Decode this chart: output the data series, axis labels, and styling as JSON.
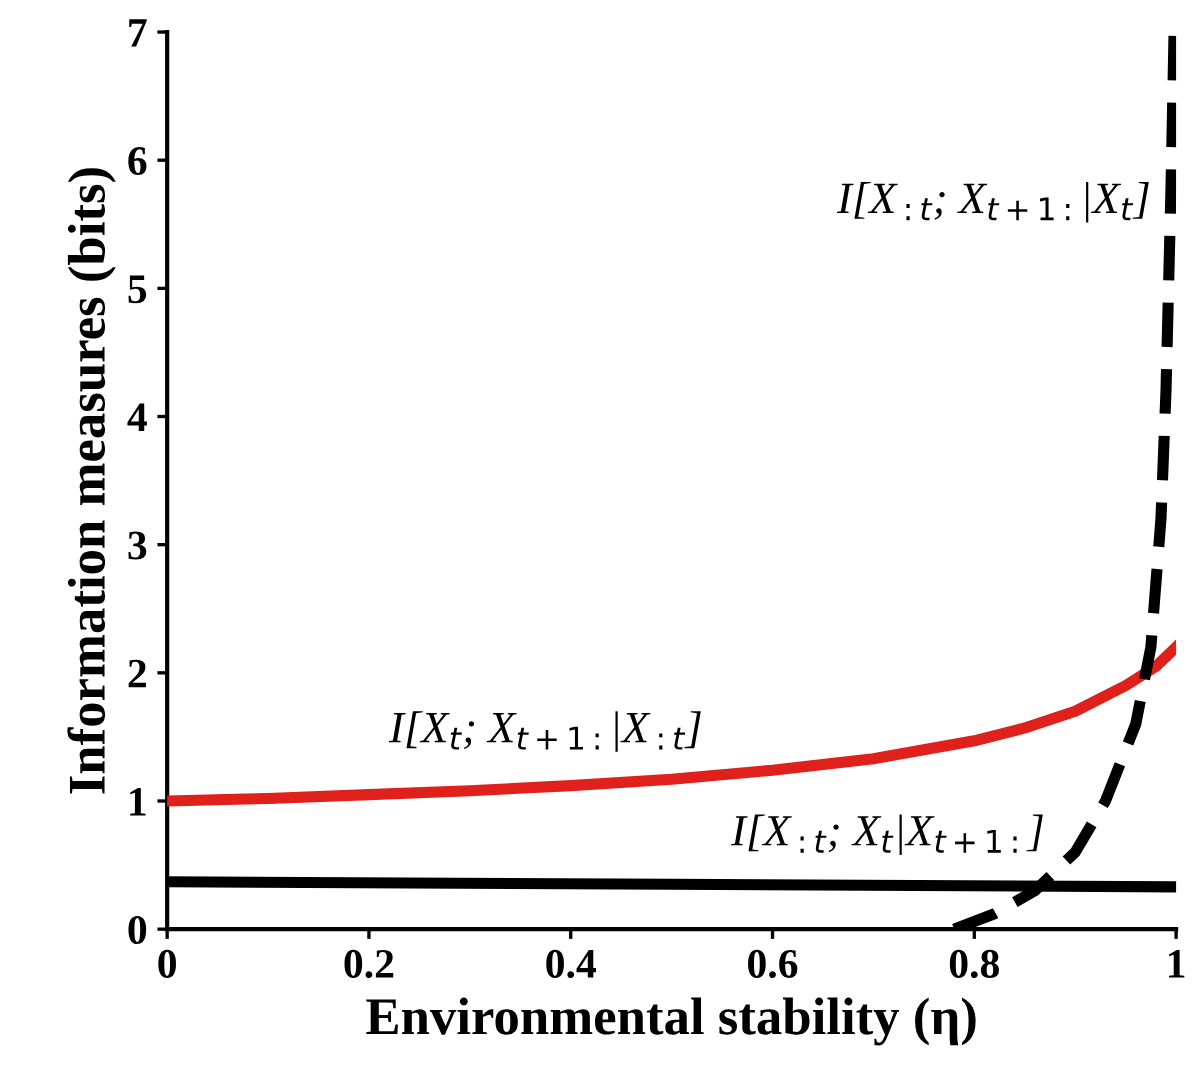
{
  "chart_data": {
    "type": "line",
    "xlabel": "Environmental stability (η)",
    "ylabel": "Information measures (bits)",
    "xlim": [
      0,
      1
    ],
    "ylim": [
      0,
      7
    ],
    "xticks": [
      0,
      0.2,
      0.4,
      0.6,
      0.8,
      1
    ],
    "yticks": [
      0,
      1,
      2,
      3,
      4,
      5,
      6,
      7
    ],
    "grid": false,
    "legend": false,
    "series": [
      {
        "color": "#e0201b",
        "line_style": "solid",
        "x": [
          0,
          0.1,
          0.2,
          0.3,
          0.4,
          0.5,
          0.6,
          0.7,
          0.8,
          0.85,
          0.9,
          0.95,
          0.98,
          1.0
        ],
        "values": [
          1.0,
          1.02,
          1.05,
          1.08,
          1.12,
          1.17,
          1.24,
          1.33,
          1.47,
          1.57,
          1.7,
          1.9,
          2.05,
          2.2
        ]
      },
      {
        "color": "#000000",
        "line_style": "solid",
        "x": [
          0,
          0.5,
          1.0
        ],
        "values": [
          0.37,
          0.35,
          0.33
        ]
      },
      {
        "color": "#000000",
        "line_style": "dashed",
        "x": [
          0.78,
          0.82,
          0.86,
          0.9,
          0.93,
          0.96,
          0.975,
          0.985,
          0.99,
          0.995,
          0.998
        ],
        "values": [
          0,
          0.12,
          0.3,
          0.6,
          1.0,
          1.6,
          2.2,
          3.2,
          4.2,
          5.8,
          7.0
        ]
      }
    ],
    "annotations": [
      "I[X$_{:t}$; X$_{t+1:}$|X$_{t}$]",
      "I[X$_{t}$; X$_{t+1:}$|X$_{:t}$]",
      "I[X$_{:t}$; X$_{t}$|X$_{t+1:}$]"
    ]
  }
}
